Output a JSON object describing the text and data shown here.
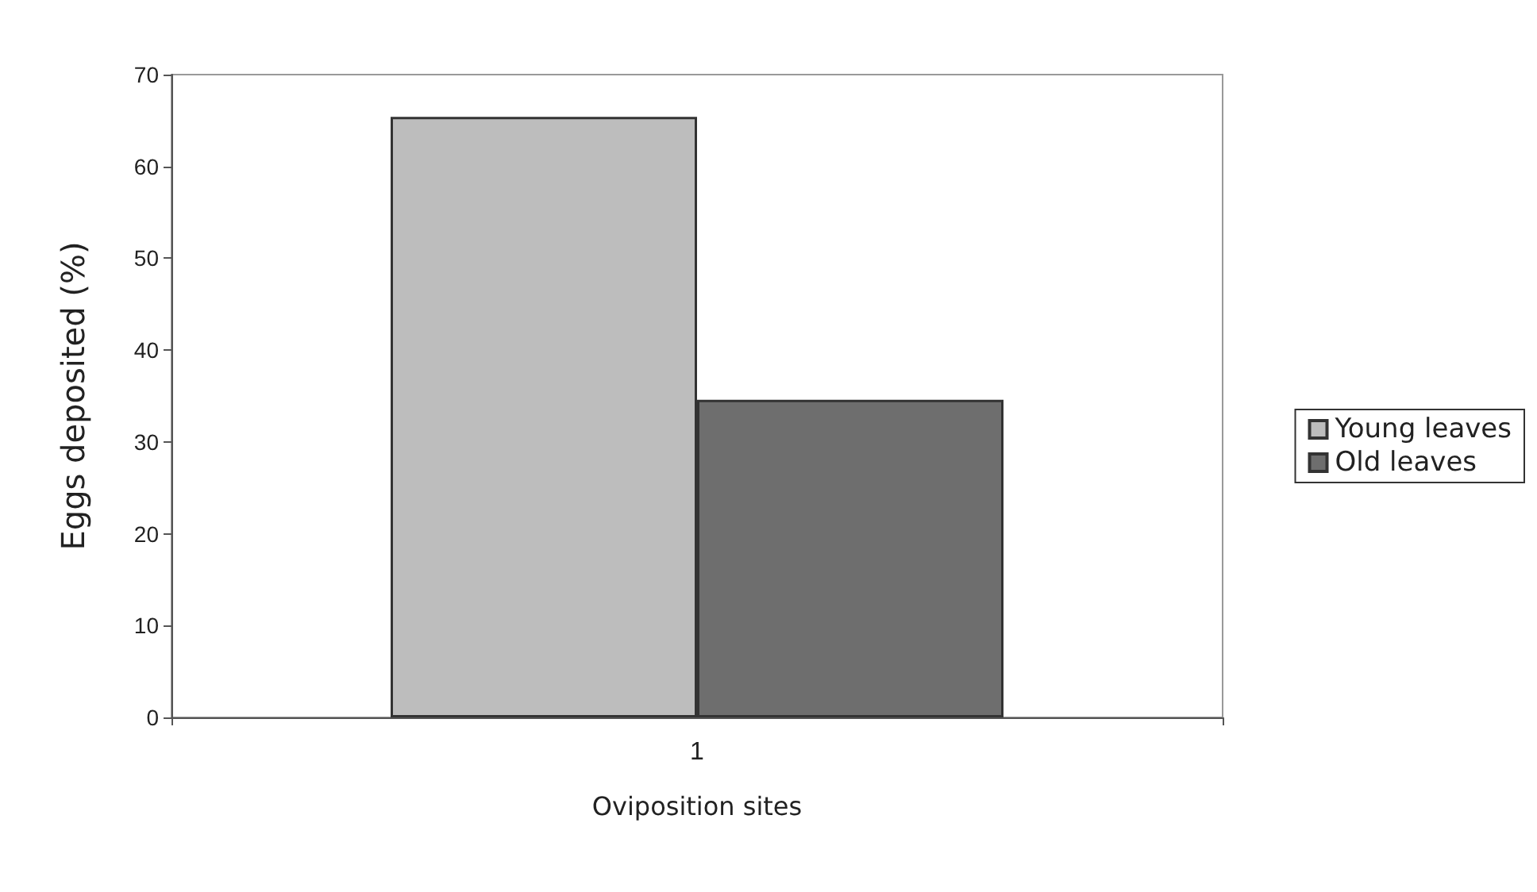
{
  "chart_data": {
    "type": "bar",
    "xlabel": "Oviposition sites",
    "ylabel": "Eggs deposited (%)",
    "categories": [
      "1"
    ],
    "series": [
      {
        "name": "Young leaves",
        "color": "#bdbdbd",
        "values": [
          65.4
        ]
      },
      {
        "name": "Old leaves",
        "color": "#6e6e6e",
        "values": [
          34.6
        ]
      }
    ],
    "ylim": [
      0,
      70
    ],
    "yticks": [
      0,
      10,
      20,
      30,
      40,
      50,
      60,
      70
    ],
    "grid": false,
    "legend": "right"
  }
}
